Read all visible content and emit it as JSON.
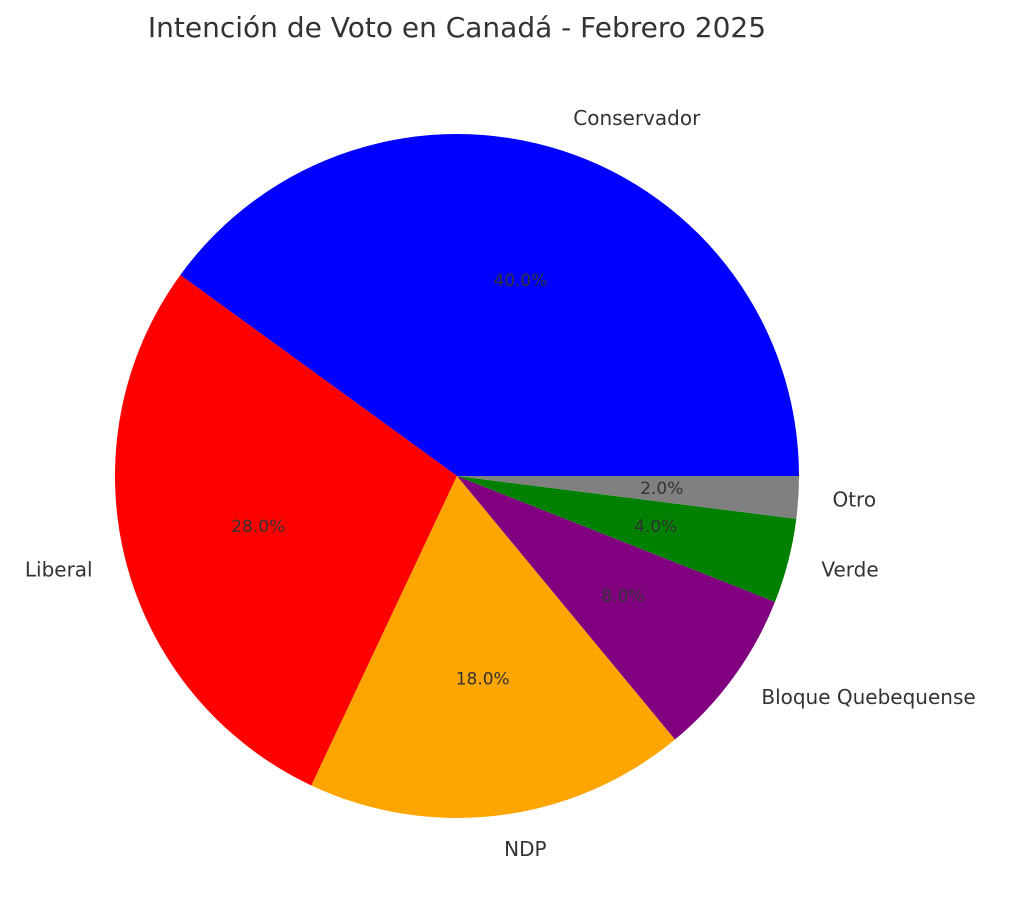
{
  "chart_data": {
    "type": "pie",
    "title": "Intención de Voto en Canadá - Febrero 2025",
    "categories": [
      "Conservador",
      "Liberal",
      "NDP",
      "Bloque Quebequense",
      "Verde",
      "Otro"
    ],
    "values": [
      40.0,
      28.0,
      18.0,
      8.0,
      4.0,
      2.0
    ],
    "percent_labels": [
      "40.0%",
      "28.0%",
      "18.0%",
      "8.0%",
      "4.0%",
      "2.0%"
    ],
    "colors": [
      "#0000ff",
      "#ff0000",
      "#ffa500",
      "#800080",
      "#008000",
      "#808080"
    ],
    "start_angle_deg": 0,
    "direction": "counterclockwise",
    "legend": "none"
  }
}
